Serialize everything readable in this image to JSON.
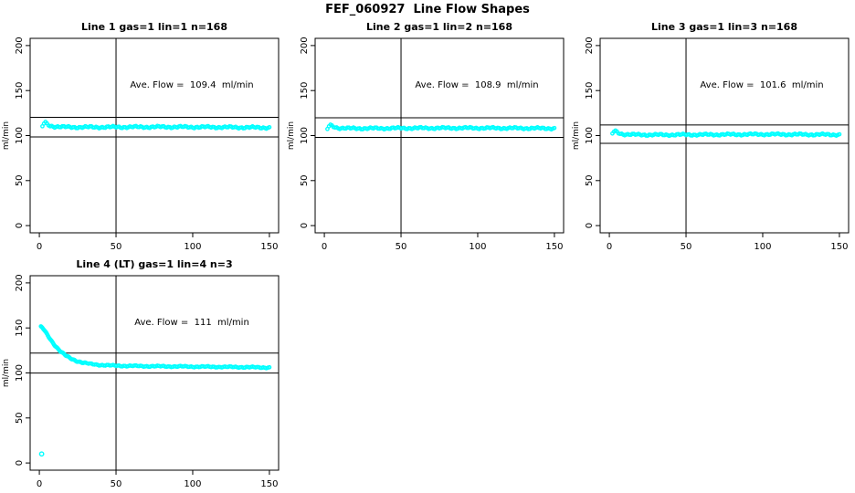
{
  "chart_data": {
    "type": "scatter",
    "title": "FEF_060927  Line Flow Shapes",
    "xlabel": "",
    "ylabel": "ml/min",
    "xlim": [
      0,
      150
    ],
    "ylim": [
      0,
      200
    ],
    "xticks": [
      0,
      50,
      100,
      150
    ],
    "yticks": [
      0,
      50,
      100,
      150,
      200
    ],
    "grid": false,
    "point_color": "#00FFFF",
    "axis_color": "#000000",
    "background_color": "#FFFFFF",
    "layout": {
      "rows": 2,
      "cols": 3,
      "panels_used": 4
    },
    "panels": [
      {
        "title": "Line 1 gas=1 lin=1 n=168",
        "ave_flow": 109.4,
        "ave_flow_label": "Ave. Flow =  109.4  ml/min",
        "vline_x": 50,
        "hlines": [
          120.3,
          98.5
        ],
        "anchors": [
          [
            2,
            110
          ],
          [
            3,
            113.5
          ],
          [
            4,
            114.5
          ],
          [
            5,
            113
          ],
          [
            7,
            111
          ],
          [
            10,
            110
          ],
          [
            15,
            109.5
          ],
          [
            25,
            109.3
          ],
          [
            50,
            109.4
          ],
          [
            80,
            109.6
          ],
          [
            110,
            109.4
          ],
          [
            150,
            108.8
          ]
        ],
        "jitter": 1.3,
        "x_step": 1,
        "outliers": []
      },
      {
        "title": "Line 2 gas=1 lin=2 n=168",
        "ave_flow": 108.9,
        "ave_flow_label": "Ave. Flow =  108.9  ml/min",
        "vline_x": 50,
        "hlines": [
          119.8,
          98.0
        ],
        "anchors": [
          [
            2,
            107
          ],
          [
            3,
            110.5
          ],
          [
            4,
            111.5
          ],
          [
            6,
            110
          ],
          [
            9,
            108.5
          ],
          [
            15,
            108
          ],
          [
            30,
            108
          ],
          [
            60,
            108.3
          ],
          [
            100,
            108.4
          ],
          [
            150,
            108
          ]
        ],
        "jitter": 1.2,
        "x_step": 1,
        "outliers": []
      },
      {
        "title": "Line 3 gas=1 lin=3 n=168",
        "ave_flow": 101.6,
        "ave_flow_label": "Ave. Flow =  101.6  ml/min",
        "vline_x": 50,
        "hlines": [
          111.8,
          91.4
        ],
        "anchors": [
          [
            2,
            102
          ],
          [
            3,
            104.5
          ],
          [
            4,
            105
          ],
          [
            6,
            103
          ],
          [
            9,
            101.5
          ],
          [
            15,
            101
          ],
          [
            30,
            100.8
          ],
          [
            60,
            101
          ],
          [
            100,
            101.4
          ],
          [
            150,
            101
          ]
        ],
        "jitter": 1.2,
        "x_step": 1,
        "outliers": []
      },
      {
        "title": "Line 4 (LT) gas=1 lin=4 n=3",
        "ave_flow": 111,
        "ave_flow_label": "Ave. Flow =  111  ml/min",
        "vline_x": 50,
        "hlines": [
          122.1,
          99.9
        ],
        "anchors": [
          [
            1,
            151
          ],
          [
            2,
            150
          ],
          [
            3,
            148
          ],
          [
            4,
            145.5
          ],
          [
            5,
            143
          ],
          [
            6,
            140.5
          ],
          [
            7,
            138
          ],
          [
            8,
            135.5
          ],
          [
            10,
            131
          ],
          [
            12,
            127
          ],
          [
            14,
            123.5
          ],
          [
            17,
            119.5
          ],
          [
            20,
            116.5
          ],
          [
            24,
            113.5
          ],
          [
            28,
            111.5
          ],
          [
            33,
            110
          ],
          [
            40,
            108.8
          ],
          [
            50,
            108
          ],
          [
            70,
            107.5
          ],
          [
            100,
            107
          ],
          [
            130,
            106.5
          ],
          [
            150,
            106
          ]
        ],
        "jitter": 0.8,
        "x_step": 1,
        "dense_until": 30,
        "dense_step": 0.5,
        "outliers": [
          [
            1.5,
            10
          ]
        ]
      }
    ]
  }
}
